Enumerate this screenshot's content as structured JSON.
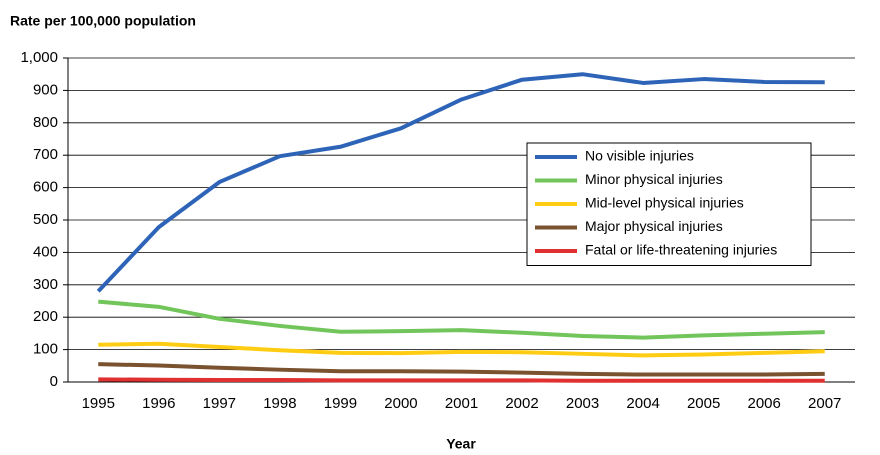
{
  "chart_data": {
    "type": "line",
    "title": "Rate per 100,000 population",
    "x_label": "Year",
    "categories": [
      "1995",
      "1996",
      "1997",
      "1998",
      "1999",
      "2000",
      "2001",
      "2002",
      "2003",
      "2004",
      "2005",
      "2006",
      "2007"
    ],
    "series": [
      {
        "name": "No visible injuries",
        "color": "#2e64b8",
        "values": [
          280,
          478,
          617,
          697,
          726,
          783,
          872,
          933,
          950,
          923,
          935,
          926,
          925
        ]
      },
      {
        "name": "Minor physical injuries",
        "color": "#72c55a",
        "values": [
          248,
          232,
          195,
          173,
          155,
          157,
          160,
          152,
          142,
          137,
          144,
          149,
          154
        ]
      },
      {
        "name": "Mid-level physical injuries",
        "color": "#ffcc14",
        "values": [
          115,
          118,
          108,
          98,
          90,
          89,
          93,
          92,
          87,
          82,
          85,
          90,
          95
        ]
      },
      {
        "name": "Major physical injuries",
        "color": "#7a5230",
        "values": [
          55,
          51,
          44,
          38,
          33,
          33,
          32,
          29,
          25,
          23,
          23,
          23,
          25
        ]
      },
      {
        "name": "Fatal or life-threatening injuries",
        "color": "#e03030",
        "values": [
          8,
          7,
          6,
          6,
          5,
          5,
          5,
          5,
          4,
          4,
          4,
          4,
          4
        ]
      }
    ],
    "ylim": [
      0,
      1000
    ],
    "yticks": [
      0,
      100,
      200,
      300,
      400,
      500,
      600,
      700,
      800,
      900,
      {
        "value": 1000,
        "label": "1,000"
      }
    ],
    "grid": true,
    "legend_position": "right"
  }
}
